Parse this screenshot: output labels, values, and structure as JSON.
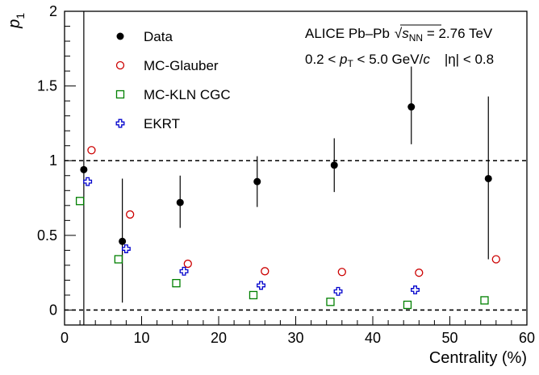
{
  "chart_data": {
    "type": "scatter",
    "xlabel": "Centrality (%)",
    "ylabel": "p₁",
    "xlim": [
      0,
      60
    ],
    "ylim": [
      -0.1,
      2
    ],
    "xticks": [
      0,
      10,
      20,
      30,
      40,
      50,
      60
    ],
    "yticks": [
      0,
      0.5,
      1,
      1.5,
      2
    ],
    "xtick_labels": [
      "0",
      "10",
      "20",
      "30",
      "40",
      "50",
      "60"
    ],
    "ytick_labels": [
      "0",
      "0.5",
      "1",
      "1.5",
      "2"
    ],
    "grid": false,
    "legend_position": "top-left",
    "reference_lines": [
      0,
      1
    ],
    "annotations": [
      "ALICE Pb–Pb √sNN = 2.76 TeV",
      "0.2 < pT < 5.0 GeV/c   |η| < 0.8"
    ],
    "annotation_parts": {
      "line1_prefix": "ALICE Pb–Pb",
      "sqrt_s": "s",
      "sqrt_sub": "NN",
      "line1_suffix": " = 2.76 TeV",
      "line2_a": "0.2 < ",
      "line2_p": "p",
      "line2_T": "T",
      "line2_b": " < 5.0 GeV/",
      "line2_c": "c",
      "line2_eta": "|η| < 0.8"
    },
    "series": [
      {
        "name": "Data",
        "marker": "filled-circle",
        "color": "#000000",
        "x": [
          2.5,
          7.5,
          15,
          25,
          35,
          45,
          55
        ],
        "y": [
          0.94,
          0.46,
          0.72,
          0.86,
          0.97,
          1.36,
          0.88
        ],
        "y_low": [
          -0.1,
          0.05,
          0.55,
          0.69,
          0.79,
          1.11,
          0.34
        ],
        "y_high": [
          2.0,
          0.88,
          0.9,
          1.03,
          1.15,
          1.63,
          1.43
        ]
      },
      {
        "name": "MC-Glauber",
        "marker": "open-circle",
        "color": "#cc0000",
        "x": [
          3.5,
          8.5,
          16,
          26,
          36,
          46,
          56
        ],
        "y": [
          1.07,
          0.64,
          0.31,
          0.26,
          0.255,
          0.25,
          0.34
        ]
      },
      {
        "name": "MC-KLN CGC",
        "marker": "open-square",
        "color": "#008000",
        "x": [
          2,
          7,
          14.5,
          24.5,
          34.5,
          44.5,
          54.5
        ],
        "y": [
          0.73,
          0.34,
          0.18,
          0.1,
          0.055,
          0.035,
          0.065
        ]
      },
      {
        "name": "EKRT",
        "marker": "open-cross",
        "color": "#0000cc",
        "x": [
          3,
          8,
          15.5,
          25.5,
          35.5,
          45.5
        ],
        "y": [
          0.86,
          0.41,
          0.26,
          0.165,
          0.125,
          0.135
        ]
      }
    ]
  }
}
